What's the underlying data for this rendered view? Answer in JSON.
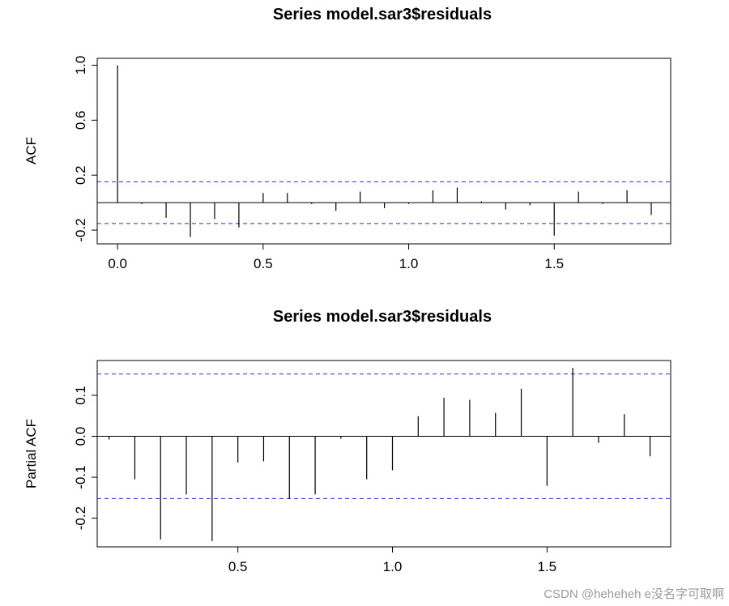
{
  "watermark": "CSDN @heheheh e没名字可取啊",
  "chart_data": [
    {
      "type": "bar",
      "title": "Series  model.sar3$residuals",
      "xlabel": "",
      "ylabel": "ACF",
      "xlim": [
        -0.07,
        1.9
      ],
      "ylim": [
        -0.3,
        1.05
      ],
      "xticks": [
        0.0,
        0.5,
        1.0,
        1.5
      ],
      "xtick_labels": [
        "0.0",
        "0.5",
        "1.0",
        "1.5"
      ],
      "yticks": [
        -0.2,
        0.2,
        0.6,
        1.0
      ],
      "ytick_labels": [
        "-0.2",
        "0.2",
        "0.6",
        "1.0"
      ],
      "ci": 0.152,
      "lags": [
        0.0,
        0.0833,
        0.1667,
        0.25,
        0.3333,
        0.4167,
        0.5,
        0.5833,
        0.6667,
        0.75,
        0.8333,
        0.9167,
        1.0,
        1.0833,
        1.1667,
        1.25,
        1.3333,
        1.4167,
        1.5,
        1.5833,
        1.6667,
        1.75,
        1.8333
      ],
      "values": [
        1.0,
        -0.01,
        -0.11,
        -0.25,
        -0.12,
        -0.18,
        0.07,
        0.07,
        -0.01,
        -0.06,
        0.08,
        -0.04,
        -0.01,
        0.09,
        0.11,
        0.01,
        -0.05,
        -0.02,
        -0.24,
        0.08,
        -0.01,
        0.09,
        -0.09
      ],
      "grid": false,
      "legend": "none"
    },
    {
      "type": "bar",
      "title": "Series  model.sar3$residuals",
      "xlabel": "",
      "ylabel": "Partial ACF",
      "xlim": [
        0.045,
        1.9
      ],
      "ylim": [
        -0.27,
        0.185
      ],
      "xticks": [
        0.5,
        1.0,
        1.5
      ],
      "xtick_labels": [
        "0.5",
        "1.0",
        "1.5"
      ],
      "yticks": [
        -0.2,
        -0.1,
        0.0,
        0.1
      ],
      "ytick_labels": [
        "-0.2",
        "-0.1",
        "0.0",
        "0.1"
      ],
      "ci": 0.152,
      "lags": [
        0.0833,
        0.1667,
        0.25,
        0.3333,
        0.4167,
        0.5,
        0.5833,
        0.6667,
        0.75,
        0.8333,
        0.9167,
        1.0,
        1.0833,
        1.1667,
        1.25,
        1.3333,
        1.4167,
        1.5,
        1.5833,
        1.6667,
        1.75,
        1.8333
      ],
      "values": [
        -0.008,
        -0.105,
        -0.252,
        -0.142,
        -0.256,
        -0.064,
        -0.061,
        -0.153,
        -0.142,
        -0.006,
        -0.105,
        -0.083,
        0.049,
        0.094,
        0.089,
        0.057,
        0.116,
        -0.121,
        0.167,
        -0.016,
        0.054,
        -0.049
      ],
      "grid": false,
      "legend": "none"
    }
  ]
}
